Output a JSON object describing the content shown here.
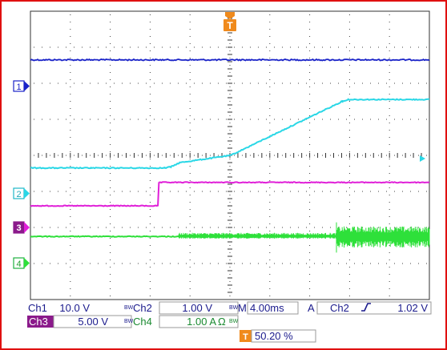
{
  "trigger": {
    "marker_label": "T",
    "color": "#f08a1c",
    "position_percent": "50.20 %"
  },
  "channels": [
    {
      "id": "ch1",
      "label": "Ch1",
      "scale": "10.0 V",
      "bw": "BW",
      "marker": "1",
      "color": "#1a23c8"
    },
    {
      "id": "ch2",
      "label": "Ch2",
      "scale": "1.00 V",
      "bw": "BW",
      "marker": "2",
      "color": "#2ad7e6"
    },
    {
      "id": "ch3",
      "label": "Ch3",
      "scale": "5.00 V",
      "bw": "BW",
      "marker": "3",
      "color": "#e020d8"
    },
    {
      "id": "ch4",
      "label": "Ch4",
      "scale": "1.00 A",
      "unit_symbol": "Ω",
      "bw": "BW",
      "marker": "4",
      "color": "#2ee03a"
    }
  ],
  "timebase": {
    "label": "M",
    "value": "4.00ms"
  },
  "trigger_setting": {
    "mode": "A",
    "source": "Ch2",
    "slope_icon": "rising-edge-icon",
    "level": "1.02 V"
  },
  "colors": {
    "frame": "#e01010",
    "grid": "#303030",
    "text": "#1a1a8c",
    "ch3_highlight": "#8b1a8b"
  },
  "chart_data": {
    "type": "line",
    "grid": {
      "divisions_x": 10,
      "divisions_y": 8,
      "shown": true
    },
    "x": {
      "unit": "ms",
      "per_division": 4,
      "range": [
        -20.08,
        19.92
      ]
    },
    "series": [
      {
        "name": "Ch1",
        "description": "flat high level",
        "values": [
          [
            -20.08,
            2.65
          ],
          [
            19.92,
            2.65
          ]
        ]
      },
      {
        "name": "Ch2",
        "values": [
          [
            -20.08,
            -0.35
          ],
          [
            -14,
            -0.35
          ],
          [
            -6.6,
            -0.35
          ],
          [
            -6.0,
            -0.32
          ],
          [
            -5.1,
            -0.2
          ],
          [
            0,
            0.0
          ],
          [
            11.2,
            1.5
          ],
          [
            11.8,
            1.55
          ],
          [
            19.92,
            1.55
          ]
        ]
      },
      {
        "name": "Ch3",
        "values": [
          [
            -20.08,
            -1.4
          ],
          [
            -7.3,
            -1.4
          ],
          [
            -7.2,
            -0.75
          ],
          [
            19.92,
            -0.75
          ]
        ]
      },
      {
        "name": "Ch4",
        "values": [
          [
            -20.08,
            -2.25
          ],
          [
            -5.2,
            -2.25
          ],
          [
            10.6,
            -2.25
          ],
          [
            19.92,
            -2.25
          ]
        ],
        "noise": [
          {
            "from": -5.2,
            "to": 10.6,
            "amplitude_div": 0.1
          },
          {
            "from": 10.6,
            "to": 19.92,
            "amplitude_div": 0.28
          }
        ]
      }
    ]
  }
}
